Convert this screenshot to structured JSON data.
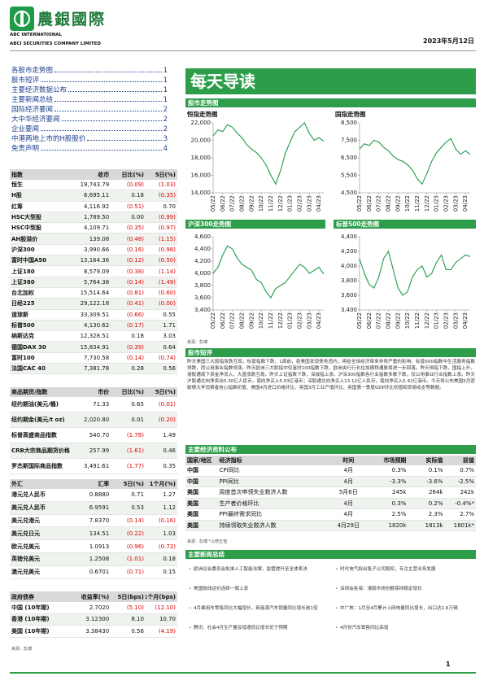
{
  "header": {
    "company_cn": "農銀國際",
    "company_en1": "ABC INTERNATIONAL",
    "company_en2": "ABCI SECURITIES COMPANY LIMITED",
    "date": "2023年5月12日"
  },
  "toc": [
    {
      "title": "各股市走势图",
      "page": 1
    },
    {
      "title": "股市短评",
      "page": 1
    },
    {
      "title": "主要经济数据公布",
      "page": 1
    },
    {
      "title": "主要新闻总结",
      "page": 1
    },
    {
      "title": "国际经济要闻",
      "page": 2
    },
    {
      "title": "大中华经济要闻",
      "page": 2
    },
    {
      "title": "企业要闻",
      "page": 2
    },
    {
      "title": "中港两地上市的H股股价",
      "page": 3
    },
    {
      "title": "免责声明",
      "page": 4
    }
  ],
  "index_table": {
    "columns": [
      "指数",
      "收市",
      "日比(%)",
      "5日(%)"
    ],
    "rows": [
      [
        "恒生",
        "19,743.79",
        "(0.09)",
        "(1.03)"
      ],
      [
        "H股",
        "6,695.11",
        "0.18",
        "(0.35)"
      ],
      [
        "红筹",
        "4,116.92",
        "(0.51)",
        "0.70"
      ],
      [
        "HSC大型股",
        "1,789.50",
        "0.00",
        "(0.99)"
      ],
      [
        "HSC中型股",
        "4,109.71",
        "(0.35)",
        "(0.97)"
      ],
      [
        "AH股溢价",
        "139.08",
        "(0.48)",
        "(1.15)"
      ],
      [
        "沪深300",
        "3,990.66",
        "(0.16)",
        "(0.98)"
      ],
      [
        "富时中国A50",
        "13,164.36",
        "(0.12)",
        "(0.50)"
      ],
      [
        "上证180",
        "8,579.09",
        "(0.38)",
        "(1.14)"
      ],
      [
        "上证380",
        "5,764.38",
        "(0.14)",
        "(1.49)"
      ],
      [
        "台北加权",
        "15,514.64",
        "(0.81)",
        "(0.60)"
      ],
      [
        "日经225",
        "29,122.18",
        "(0.41)",
        "(0.00)"
      ],
      [
        "道琼斯",
        "33,309.51",
        "(0.66)",
        "0.55"
      ],
      [
        "标普500",
        "4,130.62",
        "(0.17)",
        "1.71"
      ],
      [
        "纳斯达克",
        "12,328.51",
        "0.18",
        "3.03"
      ],
      [
        "德国DAX 30",
        "15,834.91",
        "(0.39)",
        "0.64"
      ],
      [
        "富时100",
        "7,730.58",
        "(0.14)",
        "(0.74)"
      ],
      [
        "法国CAC 40",
        "7,381.78",
        "0.28",
        "0.56"
      ]
    ]
  },
  "commodity_table": {
    "columns": [
      "商品期货/指数",
      "市价",
      "日比(%)",
      "5日(%)"
    ],
    "rows": [
      [
        "纽约期油(美元/桶)",
        "71.33",
        "0.65",
        "(0.01)"
      ],
      [
        "纽约期金(美元/t oz)",
        "2,020.80",
        "0.01",
        "(0.20)"
      ],
      [
        "标普高盛商品指数",
        "540.70",
        "(1.78)",
        "1.49"
      ],
      [
        "CRB大宗商品期货价格指数",
        "257.99",
        "(1.61)",
        "0.46"
      ],
      [
        "罗杰斯国际商品指数",
        "3,491.61",
        "(1.77)",
        "0.35"
      ]
    ]
  },
  "fx_table": {
    "columns": [
      "外汇",
      "汇率",
      "5日(%)",
      "1个月(%)"
    ],
    "rows": [
      [
        "港元兑人民币",
        "0.8880",
        "0.71",
        "1.27"
      ],
      [
        "美元兑人民币",
        "6.9591",
        "0.53",
        "1.12"
      ],
      [
        "美元兑港元",
        "7.8370",
        "(0.14)",
        "(0.16)"
      ],
      [
        "美元兑日元",
        "134.51",
        "(0.22)",
        "1.03"
      ],
      [
        "欧元兑美元",
        "1.0913",
        "(0.96)",
        "(0.72)"
      ],
      [
        "英镑兑美元",
        "1.2508",
        "(1.01)",
        "0.18"
      ],
      [
        "澳元兑美元",
        "0.6701",
        "(0.71)",
        "0.15"
      ]
    ]
  },
  "bond_table": {
    "columns": [
      "政府债券",
      "收益率(%)",
      "5日(bps)",
      "1个月(bps)"
    ],
    "rows": [
      [
        "中国 (10年期)",
        "2.7020",
        "(5.10)",
        "(12.10)"
      ],
      [
        "香港 (10年期)",
        "3.12300",
        "8.10",
        "10.70"
      ],
      [
        "美国 (10年期)",
        "3.38430",
        "0.56",
        "(4.19)"
      ]
    ]
  },
  "left_source": "来源：彭博",
  "banner": "每天导读",
  "market_section": "股市走势图",
  "chart_data": [
    {
      "type": "line",
      "title": "恒指走势图",
      "color": "#1f9a48",
      "categories": [
        "05/22",
        null,
        "06/22",
        null,
        "07/22",
        null,
        "08/22",
        null,
        "09/22",
        null,
        "10/22",
        null,
        "11/22",
        null,
        "12/22",
        null,
        "01/23",
        null,
        "02/23",
        null,
        "03/23",
        null,
        "04/23",
        null
      ],
      "values": [
        20500,
        21200,
        21000,
        21800,
        21500,
        20800,
        20300,
        19500,
        19000,
        18600,
        18000,
        17200,
        16000,
        15000,
        16500,
        18500,
        19800,
        21000,
        21500,
        22000,
        20800,
        20000,
        20300,
        19900
      ],
      "ylim": [
        14000,
        22000
      ],
      "yticks": [
        {
          "value": 14000,
          "label": "14,000"
        },
        {
          "value": 16000,
          "label": "16,000"
        },
        {
          "value": 18000,
          "label": "18,000"
        },
        {
          "value": 20000,
          "label": "20,000"
        },
        {
          "value": 22000,
          "label": "22,000"
        }
      ]
    },
    {
      "type": "line",
      "title": "国指走势图",
      "color": "#1f9a48",
      "categories": [
        "05/22",
        null,
        "06/22",
        null,
        "07/22",
        null,
        "08/22",
        null,
        "09/22",
        null,
        "10/22",
        null,
        "11/22",
        null,
        "12/22",
        null,
        "01/23",
        null,
        "02/23",
        null,
        "03/23",
        null,
        "04/23",
        null
      ],
      "values": [
        7000,
        7300,
        7200,
        7500,
        7400,
        7100,
        6900,
        6600,
        6400,
        6300,
        6100,
        5800,
        5300,
        5000,
        5600,
        6300,
        6800,
        7100,
        7400,
        7600,
        7000,
        6700,
        6900,
        6700
      ],
      "ylim": [
        4500,
        8500
      ],
      "yticks": [
        {
          "value": 4500,
          "label": "4,500"
        },
        {
          "value": 5500,
          "label": "5,500"
        },
        {
          "value": 6500,
          "label": "6,500"
        },
        {
          "value": 7500,
          "label": "7,500"
        },
        {
          "value": 8500,
          "label": "8,500"
        }
      ]
    },
    {
      "type": "line",
      "title": "沪深300走势图",
      "color": "#1f9a48",
      "categories": [
        "05/22",
        null,
        "06/22",
        null,
        "07/22",
        null,
        "08/22",
        null,
        "09/22",
        null,
        "10/22",
        null,
        "11/22",
        null,
        "12/22",
        null,
        "01/23",
        null,
        "02/23",
        null,
        "03/23",
        null,
        "04/23",
        null
      ],
      "values": [
        4000,
        4100,
        4300,
        4450,
        4400,
        4250,
        4150,
        4100,
        4050,
        3900,
        3850,
        3700,
        3600,
        3750,
        3800,
        3850,
        3950,
        4050,
        4150,
        4100,
        4000,
        4050,
        4100,
        3990
      ],
      "ylim": [
        3400,
        4600
      ],
      "yticks": [
        {
          "value": 3400,
          "label": "3,400"
        },
        {
          "value": 3600,
          "label": "3,600"
        },
        {
          "value": 3800,
          "label": "3,800"
        },
        {
          "value": 4000,
          "label": "4,000"
        },
        {
          "value": 4200,
          "label": "4,200"
        },
        {
          "value": 4400,
          "label": "4,400"
        },
        {
          "value": 4600,
          "label": "4,600"
        }
      ]
    },
    {
      "type": "line",
      "title": "标普500走势图",
      "color": "#1f9a48",
      "categories": [
        "05/22",
        null,
        "06/22",
        null,
        "07/22",
        null,
        "08/22",
        null,
        "09/22",
        null,
        "10/22",
        null,
        "11/22",
        null,
        "12/22",
        null,
        "01/23",
        null,
        "02/23",
        null,
        "03/23",
        null,
        "04/23",
        null
      ],
      "values": [
        4100,
        3900,
        3750,
        3700,
        3850,
        4100,
        4200,
        3950,
        3700,
        3600,
        3650,
        3850,
        3950,
        4000,
        3850,
        3900,
        4050,
        4150,
        3950,
        3950,
        4050,
        4100,
        4150,
        4130
      ],
      "ylim": [
        3400,
        4400
      ],
      "yticks": [
        {
          "value": 3400,
          "label": "3,400"
        },
        {
          "value": 3600,
          "label": "3,600"
        },
        {
          "value": 3800,
          "label": "3,800"
        },
        {
          "value": 4000,
          "label": "4,000"
        },
        {
          "value": 4200,
          "label": "4,200"
        },
        {
          "value": 4400,
          "label": "4,400"
        }
      ]
    }
  ],
  "chart_source": "来源：彭博",
  "commentary": {
    "heading": "股市短评",
    "text": "昨天美国三大股指涨跌互现，标普指数下跌。1周前，若美国发现债务违约，将给全球经济带来非常严重的影响。标普500指数中生活服务指数领跌，而公用事业指数领涨。昨天欧洲三大股指中仅富时100指数下跌，欧洲央行行长拉加德称通胀将进一步回落。昨天恒指下跌，国指上升，港股通南下资金净流入，大盘涨跌互现。昨天上证指数下跌，深成指上涨，沪深300指数各行业指数多数下跌，仅公用事业行业指数上涨。昨天沪股通北向净卖出5.30亿人民币，南向净买入5.93亿港币；深股通北向净买入13.12亿人民币，南向净买入5.42亿港币。今天将公布美国5月密歇根大学消费者信心指数初值、美国4月进口价格环比、英国3月工业产值环比、英国第一季度GDP环比初值和贸易收支等数据。"
  },
  "econ": {
    "heading": "主要经济资料公布",
    "columns": [
      "国家/地区",
      "经济指标",
      "时间",
      "市场预期",
      "实际值",
      "前值"
    ],
    "rows": [
      [
        "中国",
        "CPI同比",
        "4月",
        "0.3%",
        "0.1%",
        "0.7%"
      ],
      [
        "中国",
        "PPI同比",
        "4月",
        "-3.3%",
        "-3.6%",
        "-2.5%"
      ],
      [
        "美国",
        "周度首次申领失业救济人数",
        "5月6日",
        "245k",
        "264k",
        "242k"
      ],
      [
        "美国",
        "生产者价格环比",
        "4月",
        "0.3%",
        "0.2%",
        "-0.4%*"
      ],
      [
        "美国",
        "PPI最终需求同比",
        "4月",
        "2.5%",
        "2.3%",
        "2.7%"
      ],
      [
        "美国",
        "持续领取失业救济人数",
        "4月29日",
        "1820k",
        "1813k",
        "1801k*"
      ]
    ],
    "source": "来源：彭博  *以修正值"
  },
  "news": {
    "heading": "主要新闻总结",
    "items": [
      "欧洲议会委员会批准人工智能法案，监管提升至全体表决",
      "时代电气拟出售子公司股权，专注主营业务发展",
      "美国航线运价连续一周上涨",
      "深圳会各海：港股市场份额保持稳定增长",
      "4月乘用车零售同比大幅增长，新能源汽车销量同比增长逾1倍",
      "中广核：1月至4月累计上网电量同比增长，出口达1.6万辆",
      "腾讯：社会4月生产量及增速同比增长优于预期",
      "4月份汽车销售同比高增"
    ]
  },
  "page_number": 1
}
